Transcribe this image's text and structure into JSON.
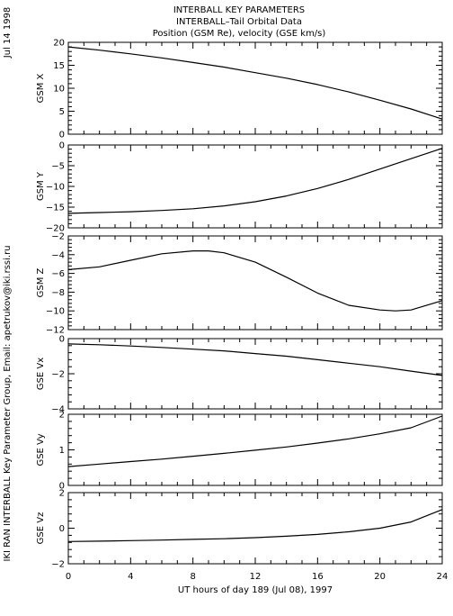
{
  "header": {
    "title_line1": "INTERBALL KEY PARAMETERS",
    "title_line2": "INTERBALL–Tail Orbital Data",
    "title_line3": "Position (GSM Re), velocity (GSE km/s)"
  },
  "side": {
    "date": "Jul 14 1998",
    "credit": "IKI RAN INTERBALL Key Parameter Group, Email: apetrukov@iki.rssi.ru"
  },
  "xaxis": {
    "label": "UT hours of day 189 (Jul 08), 1997",
    "range": [
      0,
      24
    ],
    "ticks": [
      "0",
      "4",
      "8",
      "12",
      "16",
      "20",
      "24"
    ]
  },
  "chart_data": [
    {
      "type": "line",
      "ylabel": "GSM X",
      "ylim": [
        0,
        20
      ],
      "yticks": [
        "20",
        "15",
        "10",
        "5",
        "0"
      ],
      "x": [
        0,
        2,
        4,
        6,
        8,
        10,
        12,
        14,
        16,
        18,
        20,
        22,
        24
      ],
      "values": [
        19.0,
        18.3,
        17.5,
        16.6,
        15.6,
        14.6,
        13.4,
        12.2,
        10.8,
        9.2,
        7.4,
        5.5,
        3.3
      ]
    },
    {
      "type": "line",
      "ylabel": "GSM Y",
      "ylim": [
        -20,
        0
      ],
      "yticks": [
        "0",
        "−5",
        "−10",
        "−15",
        "−20"
      ],
      "x": [
        0,
        2,
        4,
        6,
        8,
        10,
        12,
        14,
        16,
        18,
        20,
        22,
        24
      ],
      "values": [
        -16.5,
        -16.3,
        -16.1,
        -15.8,
        -15.4,
        -14.7,
        -13.7,
        -12.3,
        -10.5,
        -8.3,
        -5.8,
        -3.3,
        -0.8
      ]
    },
    {
      "type": "line",
      "ylabel": "GSM Z",
      "ylim": [
        -12,
        -2
      ],
      "yticks": [
        "−2",
        "−4",
        "−6",
        "−8",
        "−10",
        "−12"
      ],
      "x": [
        0,
        2,
        4,
        6,
        8,
        9,
        10,
        12,
        14,
        16,
        18,
        20,
        21,
        22,
        24
      ],
      "values": [
        -5.6,
        -5.3,
        -4.6,
        -3.9,
        -3.6,
        -3.6,
        -3.8,
        -4.8,
        -6.4,
        -8.1,
        -9.4,
        -9.9,
        -10.0,
        -9.9,
        -8.9
      ]
    },
    {
      "type": "line",
      "ylabel": "GSE Vx",
      "ylim": [
        -4,
        0
      ],
      "yticks": [
        "0",
        "−2",
        "−4"
      ],
      "x": [
        0,
        2,
        4,
        6,
        8,
        10,
        12,
        14,
        16,
        18,
        20,
        22,
        24
      ],
      "values": [
        -0.3,
        -0.35,
        -0.42,
        -0.5,
        -0.6,
        -0.7,
        -0.85,
        -1.0,
        -1.2,
        -1.4,
        -1.6,
        -1.85,
        -2.1
      ]
    },
    {
      "type": "line",
      "ylabel": "GSE Vy",
      "ylim": [
        0,
        2
      ],
      "yticks": [
        "2",
        "1",
        "0"
      ],
      "x": [
        0,
        2,
        4,
        6,
        8,
        10,
        12,
        14,
        16,
        18,
        20,
        22,
        24
      ],
      "values": [
        0.53,
        0.6,
        0.67,
        0.74,
        0.82,
        0.9,
        0.99,
        1.08,
        1.19,
        1.31,
        1.45,
        1.62,
        1.95
      ]
    },
    {
      "type": "line",
      "ylabel": "GSE Vz",
      "ylim": [
        -2,
        2
      ],
      "yticks": [
        "2",
        "0",
        "−2"
      ],
      "x": [
        0,
        2,
        4,
        6,
        8,
        10,
        12,
        14,
        16,
        18,
        20,
        22,
        24
      ],
      "values": [
        -0.75,
        -0.73,
        -0.7,
        -0.67,
        -0.63,
        -0.59,
        -0.53,
        -0.45,
        -0.35,
        -0.2,
        0.0,
        0.35,
        1.05
      ]
    }
  ]
}
